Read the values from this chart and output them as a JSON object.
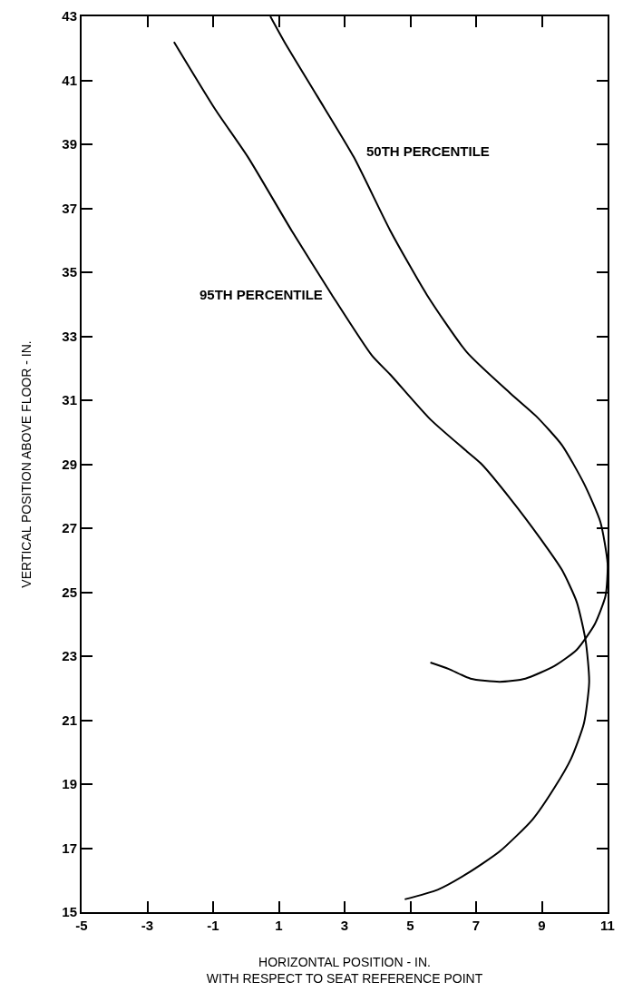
{
  "chart_data": {
    "type": "line",
    "xlabel": "HORIZONTAL POSITION - IN.\nWITH RESPECT TO SEAT REFERENCE POINT",
    "ylabel": "VERTICAL POSITION ABOVE FLOOR - IN.",
    "series": [
      {
        "name": "50TH PERCENTILE",
        "color": "#000000",
        "x": [
          0.74,
          1.17,
          2.17,
          3.28,
          4.39,
          5.5,
          6.72,
          8.06,
          8.83,
          9.61,
          10.28,
          10.78,
          11.0,
          10.94,
          10.61,
          10.06,
          9.39,
          8.5,
          7.72,
          6.83,
          6.17,
          5.61
        ],
        "values": [
          43,
          42.2,
          40.5,
          38.6,
          36.3,
          34.3,
          32.5,
          31.2,
          30.5,
          29.6,
          28.4,
          27.2,
          25.9,
          24.9,
          24.0,
          23.2,
          22.7,
          22.3,
          22.2,
          22.3,
          22.6,
          22.8
        ]
      },
      {
        "name": "95TH PERCENTILE",
        "color": "#000000",
        "x": [
          -2.19,
          -0.94,
          0.06,
          1.39,
          2.61,
          3.83,
          4.39,
          5.61,
          6.72,
          7.17,
          8.06,
          8.94,
          9.61,
          10.06,
          10.33,
          10.44,
          10.28,
          9.89,
          9.39,
          8.72,
          7.72,
          6.72,
          5.83,
          4.83
        ],
        "values": [
          42.2,
          40.1,
          38.6,
          36.3,
          34.3,
          32.4,
          31.8,
          30.4,
          29.4,
          29.0,
          27.9,
          26.7,
          25.7,
          24.7,
          23.5,
          22.2,
          20.9,
          19.8,
          18.9,
          17.9,
          16.9,
          16.2,
          15.7,
          15.4
        ]
      }
    ],
    "xlim": [
      -5,
      11
    ],
    "xticks": [
      -5,
      -3,
      -1,
      1,
      3,
      5,
      7,
      9,
      11
    ],
    "ylim": [
      15,
      43
    ],
    "yticks": [
      15,
      17,
      19,
      21,
      23,
      25,
      27,
      29,
      31,
      33,
      35,
      37,
      39,
      41,
      43
    ],
    "grid": false,
    "legend": false,
    "marker": "none",
    "line_style": "solid"
  }
}
